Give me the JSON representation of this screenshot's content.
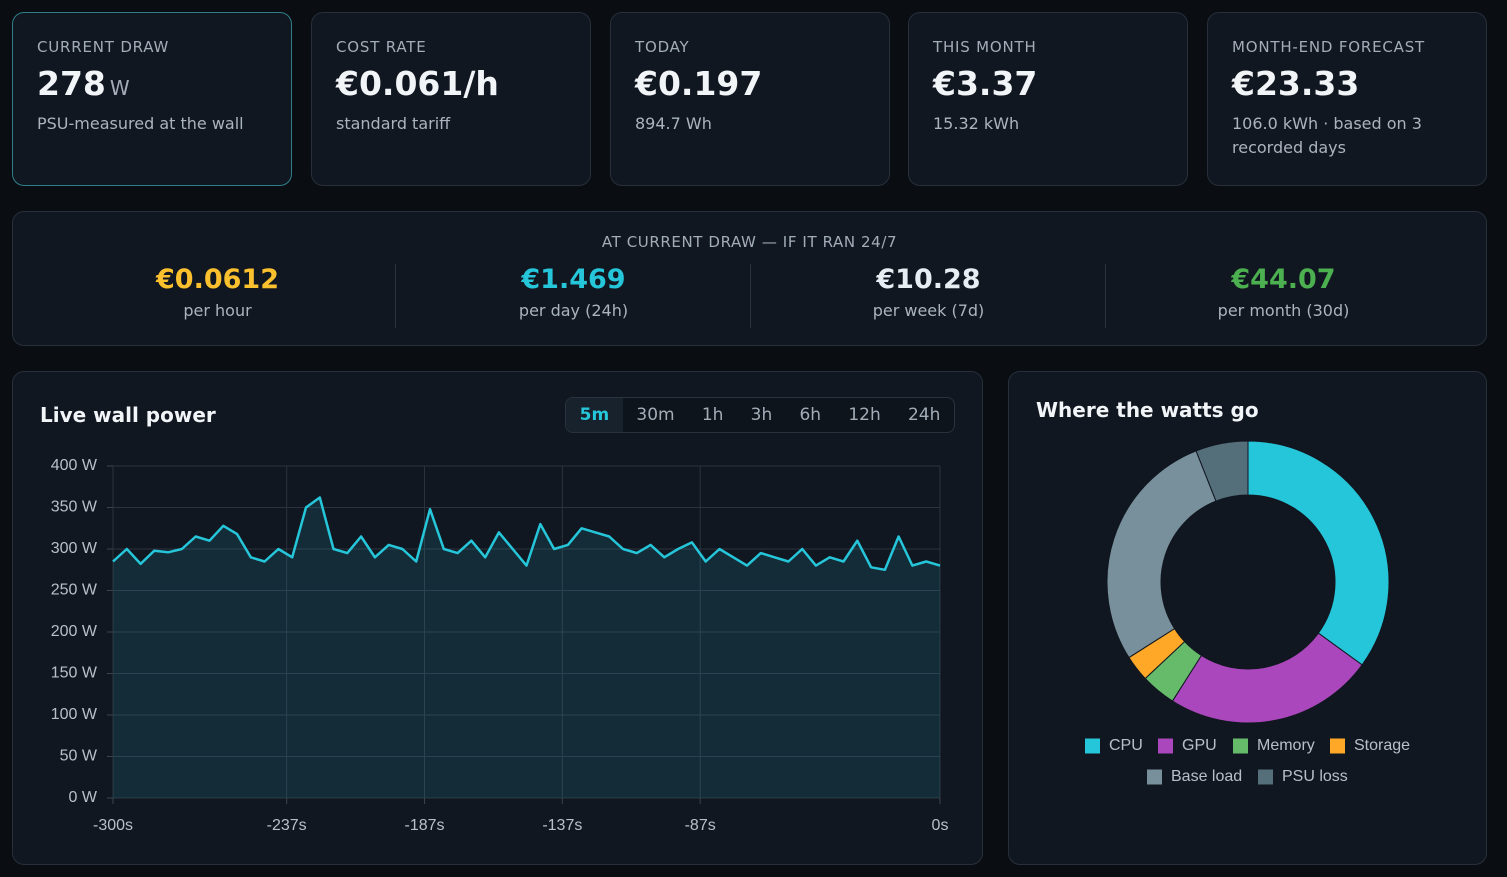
{
  "stats": [
    {
      "label": "CURRENT DRAW",
      "value": "278",
      "unit": "W",
      "sub": "PSU-measured at the wall"
    },
    {
      "label": "COST RATE",
      "value": "€0.061/h",
      "sub": "standard tariff"
    },
    {
      "label": "TODAY",
      "value": "€0.197",
      "sub": "894.7 Wh"
    },
    {
      "label": "THIS MONTH",
      "value": "€3.37",
      "sub": "15.32 kWh"
    },
    {
      "label": "MONTH-END FORECAST",
      "value": "€23.33",
      "sub": "106.0 kWh · based on 3 recorded days"
    }
  ],
  "projection": {
    "title": "AT CURRENT DRAW — IF IT RAN 24/7",
    "items": [
      {
        "value": "€0.0612",
        "label": "per hour",
        "color": "#fbc02d"
      },
      {
        "value": "€1.469",
        "label": "per day (24h)",
        "color": "#26c6da"
      },
      {
        "value": "€10.28",
        "label": "per week (7d)",
        "color": "#e6edf3"
      },
      {
        "value": "€44.07",
        "label": "per month (30d)",
        "color": "#4caf50"
      }
    ]
  },
  "range_options": [
    "5m",
    "30m",
    "1h",
    "3h",
    "6h",
    "12h",
    "24h"
  ],
  "active_range_index": 0,
  "chart_data": [
    {
      "type": "line",
      "title": "Live wall power",
      "x": [
        -300,
        -295,
        -290,
        -285,
        -280,
        -275,
        -270,
        -265,
        -260,
        -255,
        -250,
        -245,
        -240,
        -235,
        -230,
        -225,
        -220,
        -215,
        -210,
        -205,
        -200,
        -195,
        -190,
        -185,
        -180,
        -175,
        -170,
        -165,
        -160,
        -155,
        -150,
        -145,
        -140,
        -135,
        -130,
        -125,
        -120,
        -115,
        -110,
        -105,
        -100,
        -95,
        -90,
        -85,
        -80,
        -75,
        -70,
        -65,
        -60,
        -55,
        -50,
        -45,
        -40,
        -35,
        -30,
        -25,
        -20,
        -15,
        -10,
        -5,
        0
      ],
      "values": [
        285,
        300,
        282,
        298,
        296,
        300,
        315,
        310,
        328,
        318,
        290,
        285,
        300,
        290,
        350,
        362,
        300,
        295,
        315,
        290,
        305,
        300,
        285,
        348,
        300,
        295,
        310,
        290,
        320,
        300,
        280,
        330,
        300,
        305,
        325,
        320,
        315,
        300,
        295,
        305,
        290,
        300,
        308,
        285,
        300,
        290,
        280,
        295,
        290,
        285,
        300,
        280,
        290,
        285,
        310,
        278,
        275,
        315,
        280,
        285,
        280
      ],
      "color": "#26c6da",
      "area": true,
      "grid": true,
      "xlim": [
        -300,
        0
      ],
      "xticks": [
        {
          "value": -300,
          "label": "-300s"
        },
        {
          "value": -237,
          "label": "-237s"
        },
        {
          "value": -187,
          "label": "-187s"
        },
        {
          "value": -137,
          "label": "-137s"
        },
        {
          "value": -87,
          "label": "-87s"
        },
        {
          "value": 0,
          "label": "0s"
        }
      ],
      "ylim": [
        0,
        400
      ],
      "yticks": [
        {
          "value": 0,
          "label": "0 W"
        },
        {
          "value": 50,
          "label": "50 W"
        },
        {
          "value": 100,
          "label": "100 W"
        },
        {
          "value": 150,
          "label": "150 W"
        },
        {
          "value": 200,
          "label": "200 W"
        },
        {
          "value": 250,
          "label": "250 W"
        },
        {
          "value": 300,
          "label": "300 W"
        },
        {
          "value": 350,
          "label": "350 W"
        },
        {
          "value": 400,
          "label": "400 W"
        }
      ]
    },
    {
      "type": "donut",
      "title": "Where the watts go",
      "categories": [
        "CPU",
        "GPU",
        "Memory",
        "Storage",
        "Base load",
        "PSU loss"
      ],
      "values": [
        35,
        24,
        4,
        3,
        28,
        6
      ],
      "colors": [
        "#26c6da",
        "#ab47bc",
        "#66bb6a",
        "#ffa726",
        "#78909c",
        "#546e7a"
      ]
    }
  ]
}
